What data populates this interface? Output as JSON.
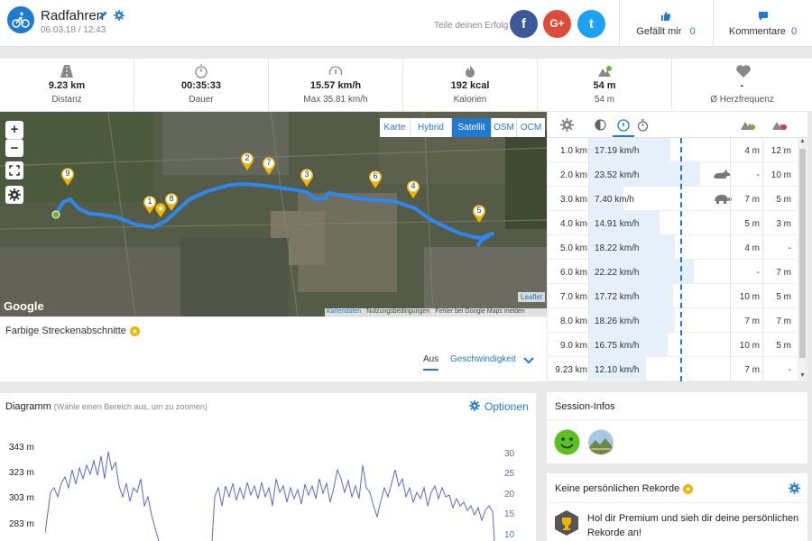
{
  "header": {
    "title": "Radfahren",
    "date": "06.03.18 / 12:43",
    "share_text": "Teile deinen Erfolg",
    "social": [
      {
        "name": "facebook",
        "glyph": "f",
        "color": "#3b5998"
      },
      {
        "name": "google-plus",
        "glyph": "G+",
        "color": "#dd4b39"
      },
      {
        "name": "twitter",
        "glyph": "t",
        "color": "#1da1f2"
      }
    ],
    "like_label": "Gefällt mir",
    "like_count": "0",
    "comments_label": "Kommentare",
    "comments_count": "0"
  },
  "stats": [
    {
      "icon": "road-icon",
      "value": "9.23 km",
      "label": "Distanz"
    },
    {
      "icon": "stopwatch-icon",
      "value": "00:35:33",
      "label": "Dauer"
    },
    {
      "icon": "speedometer-icon",
      "value": "15.57 km/h",
      "label": "Max 35.81 km/h"
    },
    {
      "icon": "flame-icon",
      "value": "192 kcal",
      "label": "Kalorien"
    },
    {
      "icon": "elevation-up-icon",
      "value": "54 m",
      "label": "54 m"
    },
    {
      "icon": "heart-icon",
      "value": "-",
      "label": "Ø Herzfrequenz"
    }
  ],
  "map": {
    "layers": [
      "Karte",
      "Hybrid",
      "Satellit",
      "OSM",
      "OCM"
    ],
    "active_layer": "Satellit",
    "google_logo": "Google",
    "leaflet": "Leaflet",
    "attribution": [
      "Kartendaten",
      "Nutzungsbedingungen",
      "Fehler bei Google Maps melden"
    ],
    "markers": [
      "1",
      "2",
      "3",
      "4",
      "5",
      "6",
      "7",
      "8",
      "9"
    ]
  },
  "segments": {
    "title": "Farbige Streckenabschnitte",
    "tab_off": "Aus",
    "tab_speed": "Geschwindigkeit"
  },
  "splits": {
    "rows": [
      {
        "km": "1.0 km",
        "speed": "17.19 km/h",
        "speed_value": 17.19,
        "up": "4 m",
        "down": "12 m",
        "icon": ""
      },
      {
        "km": "2.0 km",
        "speed": "23.52 km/h",
        "speed_value": 23.52,
        "up": "-",
        "down": "10 m",
        "icon": "rabbit-icon"
      },
      {
        "km": "3.0 km",
        "speed": "7.40 km/h",
        "speed_value": 7.4,
        "up": "7 m",
        "down": "5 m",
        "icon": "turtle-icon"
      },
      {
        "km": "4.0 km",
        "speed": "14.91 km/h",
        "speed_value": 14.91,
        "up": "5 m",
        "down": "3 m",
        "icon": ""
      },
      {
        "km": "5.0 km",
        "speed": "18.22 km/h",
        "speed_value": 18.22,
        "up": "4 m",
        "down": "-",
        "icon": ""
      },
      {
        "km": "6.0 km",
        "speed": "22.22 km/h",
        "speed_value": 22.22,
        "up": "-",
        "down": "7 m",
        "icon": ""
      },
      {
        "km": "7.0 km",
        "speed": "17.72 km/h",
        "speed_value": 17.72,
        "up": "10 m",
        "down": "5 m",
        "icon": ""
      },
      {
        "km": "8.0 km",
        "speed": "18.26 km/h",
        "speed_value": 18.26,
        "up": "7 m",
        "down": "7 m",
        "icon": ""
      },
      {
        "km": "9.0 km",
        "speed": "16.75 km/h",
        "speed_value": 16.75,
        "up": "10 m",
        "down": "5 m",
        "icon": ""
      },
      {
        "km": "9.23 km",
        "speed": "12.10 km/h",
        "speed_value": 12.1,
        "up": "7 m",
        "down": "-",
        "icon": ""
      }
    ]
  },
  "diagram": {
    "title": "Diagramm",
    "hint": "(Wähle einen Bereich aus, um zu zoomen)",
    "options_label": "Optionen",
    "y_left": [
      "343 m",
      "323 m",
      "303 m",
      "283 m"
    ],
    "y_right": [
      "30",
      "25",
      "20",
      "15",
      "10"
    ]
  },
  "session": {
    "title": "Session-Infos"
  },
  "records": {
    "title": "Keine persönlichen Rekorde",
    "text": "Hol dir Premium und sieh dir deine persönlichen Rekorde an!"
  },
  "colors": {
    "accent": "#1f7ad2",
    "route": "#2e86f0",
    "marker": "#f0b400"
  }
}
